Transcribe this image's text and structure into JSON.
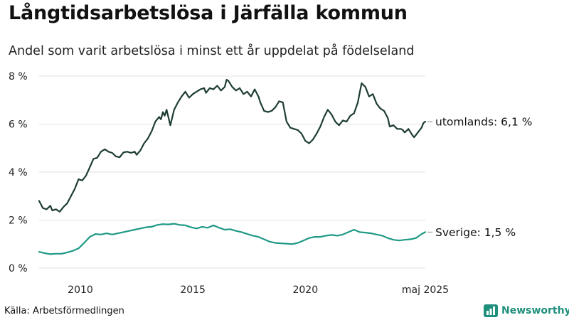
{
  "header": {
    "title": "Långtidsarbetslösa i Järfälla kommun",
    "subtitle": "Andel som varit arbetslösa i minst ett år uppdelat på födelseland"
  },
  "footer": {
    "source": "Källa: Arbetsförmedlingen",
    "brand": "Newsworthy",
    "brand_icon": "bar-chart-icon"
  },
  "colors": {
    "utomlands": "#1e3d34",
    "sverige": "#1f9986",
    "grid": "#e0e0e0",
    "brand": "#1f8f7e"
  },
  "chart_data": {
    "type": "line",
    "title": "Långtidsarbetslösa i Järfälla kommun",
    "subtitle": "Andel som varit arbetslösa i minst ett år uppdelat på födelseland",
    "xlim": [
      "2008-03",
      "2025-05"
    ],
    "ylim": [
      0,
      8
    ],
    "y_ticks": [
      0,
      2,
      4,
      6,
      8
    ],
    "y_tick_labels": [
      "0 %",
      "2 %",
      "4 %",
      "6 %",
      "8 %"
    ],
    "x_ticks": [
      "2010",
      "2015",
      "2020",
      "2025-05"
    ],
    "x_tick_labels": [
      "2010",
      "2015",
      "2020",
      "maj 2025"
    ],
    "grid": "horizontal",
    "legend": "end-labels",
    "series": [
      {
        "name": "utomlands",
        "end_label": "utomlands: 6,1 %",
        "points": [
          [
            "2008-03",
            2.8
          ],
          [
            "2008-05",
            2.5
          ],
          [
            "2008-07",
            2.45
          ],
          [
            "2008-09",
            2.6
          ],
          [
            "2008-10",
            2.4
          ],
          [
            "2008-12",
            2.45
          ],
          [
            "2009-02",
            2.35
          ],
          [
            "2009-04",
            2.55
          ],
          [
            "2009-06",
            2.7
          ],
          [
            "2009-08",
            3.0
          ],
          [
            "2009-10",
            3.3
          ],
          [
            "2009-12",
            3.7
          ],
          [
            "2010-02",
            3.65
          ],
          [
            "2010-04",
            3.85
          ],
          [
            "2010-06",
            4.2
          ],
          [
            "2010-08",
            4.55
          ],
          [
            "2010-10",
            4.6
          ],
          [
            "2010-12",
            4.85
          ],
          [
            "2011-02",
            4.95
          ],
          [
            "2011-04",
            4.85
          ],
          [
            "2011-06",
            4.8
          ],
          [
            "2011-08",
            4.65
          ],
          [
            "2011-10",
            4.62
          ],
          [
            "2011-12",
            4.82
          ],
          [
            "2012-02",
            4.85
          ],
          [
            "2012-04",
            4.8
          ],
          [
            "2012-06",
            4.85
          ],
          [
            "2012-07",
            4.72
          ],
          [
            "2012-09",
            4.9
          ],
          [
            "2012-11",
            5.2
          ],
          [
            "2013-01",
            5.4
          ],
          [
            "2013-03",
            5.7
          ],
          [
            "2013-05",
            6.1
          ],
          [
            "2013-07",
            6.3
          ],
          [
            "2013-08",
            6.2
          ],
          [
            "2013-09",
            6.5
          ],
          [
            "2013-10",
            6.35
          ],
          [
            "2013-11",
            6.6
          ],
          [
            "2014-01",
            5.95
          ],
          [
            "2014-03",
            6.6
          ],
          [
            "2014-05",
            6.9
          ],
          [
            "2014-07",
            7.15
          ],
          [
            "2014-09",
            7.35
          ],
          [
            "2014-11",
            7.1
          ],
          [
            "2015-01",
            7.25
          ],
          [
            "2015-03",
            7.35
          ],
          [
            "2015-05",
            7.45
          ],
          [
            "2015-07",
            7.5
          ],
          [
            "2015-08",
            7.3
          ],
          [
            "2015-10",
            7.5
          ],
          [
            "2015-12",
            7.45
          ],
          [
            "2016-02",
            7.6
          ],
          [
            "2016-04",
            7.4
          ],
          [
            "2016-06",
            7.55
          ],
          [
            "2016-07",
            7.85
          ],
          [
            "2016-08",
            7.8
          ],
          [
            "2016-10",
            7.55
          ],
          [
            "2016-12",
            7.4
          ],
          [
            "2017-02",
            7.5
          ],
          [
            "2017-04",
            7.25
          ],
          [
            "2017-06",
            7.35
          ],
          [
            "2017-08",
            7.15
          ],
          [
            "2017-10",
            7.45
          ],
          [
            "2017-12",
            7.15
          ],
          [
            "2018-01",
            6.9
          ],
          [
            "2018-03",
            6.55
          ],
          [
            "2018-05",
            6.5
          ],
          [
            "2018-07",
            6.55
          ],
          [
            "2018-09",
            6.7
          ],
          [
            "2018-11",
            6.95
          ],
          [
            "2019-01",
            6.9
          ],
          [
            "2019-03",
            6.1
          ],
          [
            "2019-05",
            5.85
          ],
          [
            "2019-07",
            5.8
          ],
          [
            "2019-09",
            5.75
          ],
          [
            "2019-11",
            5.6
          ],
          [
            "2020-01",
            5.3
          ],
          [
            "2020-03",
            5.2
          ],
          [
            "2020-05",
            5.35
          ],
          [
            "2020-07",
            5.6
          ],
          [
            "2020-09",
            5.9
          ],
          [
            "2020-11",
            6.3
          ],
          [
            "2021-01",
            6.6
          ],
          [
            "2021-03",
            6.4
          ],
          [
            "2021-05",
            6.1
          ],
          [
            "2021-07",
            5.95
          ],
          [
            "2021-09",
            6.15
          ],
          [
            "2021-11",
            6.1
          ],
          [
            "2022-01",
            6.35
          ],
          [
            "2022-03",
            6.45
          ],
          [
            "2022-05",
            6.9
          ],
          [
            "2022-06",
            7.3
          ],
          [
            "2022-07",
            7.7
          ],
          [
            "2022-09",
            7.55
          ],
          [
            "2022-11",
            7.15
          ],
          [
            "2023-01",
            7.25
          ],
          [
            "2023-03",
            6.85
          ],
          [
            "2023-05",
            6.65
          ],
          [
            "2023-07",
            6.55
          ],
          [
            "2023-09",
            6.25
          ],
          [
            "2023-10",
            5.9
          ],
          [
            "2023-12",
            5.95
          ],
          [
            "2024-02",
            5.8
          ],
          [
            "2024-04",
            5.8
          ],
          [
            "2024-05",
            5.75
          ],
          [
            "2024-06",
            5.65
          ],
          [
            "2024-08",
            5.8
          ],
          [
            "2024-10",
            5.55
          ],
          [
            "2024-11",
            5.45
          ],
          [
            "2025-01",
            5.65
          ],
          [
            "2025-03",
            5.85
          ],
          [
            "2025-04",
            6.05
          ],
          [
            "2025-05",
            6.1
          ]
        ]
      },
      {
        "name": "Sverige",
        "end_label": "Sverige: 1,5 %",
        "points": [
          [
            "2008-03",
            0.68
          ],
          [
            "2008-06",
            0.62
          ],
          [
            "2008-09",
            0.58
          ],
          [
            "2008-12",
            0.6
          ],
          [
            "2009-03",
            0.6
          ],
          [
            "2009-06",
            0.65
          ],
          [
            "2009-09",
            0.72
          ],
          [
            "2009-12",
            0.82
          ],
          [
            "2010-03",
            1.05
          ],
          [
            "2010-06",
            1.3
          ],
          [
            "2010-09",
            1.42
          ],
          [
            "2010-12",
            1.4
          ],
          [
            "2011-03",
            1.45
          ],
          [
            "2011-06",
            1.4
          ],
          [
            "2011-09",
            1.45
          ],
          [
            "2011-12",
            1.5
          ],
          [
            "2012-03",
            1.55
          ],
          [
            "2012-06",
            1.6
          ],
          [
            "2012-09",
            1.65
          ],
          [
            "2012-12",
            1.7
          ],
          [
            "2013-03",
            1.72
          ],
          [
            "2013-06",
            1.8
          ],
          [
            "2013-09",
            1.83
          ],
          [
            "2013-12",
            1.82
          ],
          [
            "2014-03",
            1.85
          ],
          [
            "2014-06",
            1.8
          ],
          [
            "2014-09",
            1.78
          ],
          [
            "2014-12",
            1.7
          ],
          [
            "2015-03",
            1.65
          ],
          [
            "2015-06",
            1.72
          ],
          [
            "2015-09",
            1.68
          ],
          [
            "2015-12",
            1.78
          ],
          [
            "2016-03",
            1.68
          ],
          [
            "2016-06",
            1.6
          ],
          [
            "2016-09",
            1.62
          ],
          [
            "2016-12",
            1.55
          ],
          [
            "2017-03",
            1.5
          ],
          [
            "2017-06",
            1.42
          ],
          [
            "2017-09",
            1.35
          ],
          [
            "2017-12",
            1.3
          ],
          [
            "2018-03",
            1.2
          ],
          [
            "2018-06",
            1.1
          ],
          [
            "2018-09",
            1.05
          ],
          [
            "2018-12",
            1.03
          ],
          [
            "2019-03",
            1.02
          ],
          [
            "2019-06",
            1.0
          ],
          [
            "2019-09",
            1.05
          ],
          [
            "2019-12",
            1.15
          ],
          [
            "2020-03",
            1.25
          ],
          [
            "2020-06",
            1.3
          ],
          [
            "2020-09",
            1.3
          ],
          [
            "2020-12",
            1.35
          ],
          [
            "2021-03",
            1.38
          ],
          [
            "2021-06",
            1.35
          ],
          [
            "2021-09",
            1.4
          ],
          [
            "2021-12",
            1.5
          ],
          [
            "2022-03",
            1.6
          ],
          [
            "2022-06",
            1.5
          ],
          [
            "2022-09",
            1.48
          ],
          [
            "2022-12",
            1.45
          ],
          [
            "2023-03",
            1.4
          ],
          [
            "2023-06",
            1.35
          ],
          [
            "2023-09",
            1.25
          ],
          [
            "2023-12",
            1.18
          ],
          [
            "2024-03",
            1.15
          ],
          [
            "2024-06",
            1.18
          ],
          [
            "2024-09",
            1.2
          ],
          [
            "2024-12",
            1.25
          ],
          [
            "2025-03",
            1.42
          ],
          [
            "2025-05",
            1.5
          ]
        ]
      }
    ]
  }
}
